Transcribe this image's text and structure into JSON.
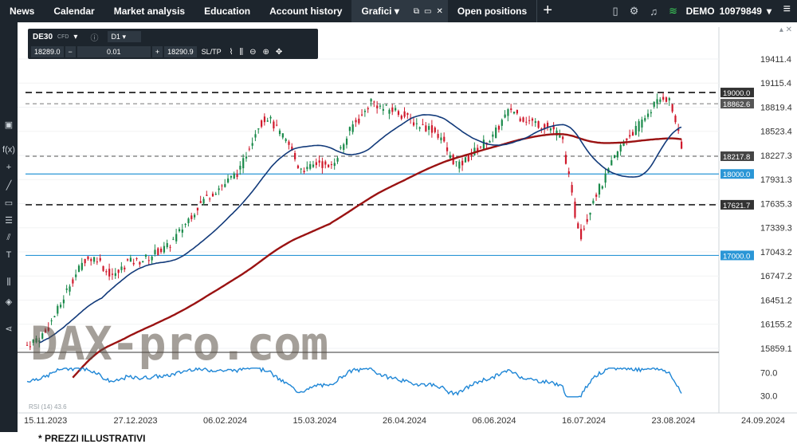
{
  "topbar": {
    "tabs": [
      "News",
      "Calendar",
      "Market analysis",
      "Education",
      "Account history",
      "Grafici",
      "Open positions"
    ],
    "account_mode": "DEMO",
    "account_number": "10979849"
  },
  "instrument": {
    "symbol": "DE30",
    "type": "CFD",
    "timeframe": "D1",
    "bid": "18289.0",
    "volume": "0.01",
    "ask": "18290.9",
    "sltp_label": "SL/TP"
  },
  "price_axis": [
    "19411.4",
    "19115.4",
    "18819.4",
    "18523.4",
    "18227.3",
    "17931.3",
    "17635.3",
    "17339.3",
    "17043.2",
    "16747.2",
    "16451.2",
    "16155.2",
    "15859.1"
  ],
  "level_labels": [
    "19000.0",
    "18862.6",
    "18217.8",
    "18000.0",
    "17621.7",
    "17000.0"
  ],
  "rsi_axis": [
    "70.0",
    "30.0"
  ],
  "rsi_label": "RSI (14) 43.6",
  "date_axis": [
    "15.11.2023",
    "27.12.2023",
    "06.02.2024",
    "15.03.2024",
    "26.04.2024",
    "06.06.2024",
    "16.07.2024",
    "23.08.2024",
    "24.09.2024"
  ],
  "watermark": "DAX-pro.com",
  "footer": "* PREZZI ILLUSTRATIVI",
  "colors": {
    "up": "#1a8a4a",
    "down": "#d0192c",
    "ma_fast": "#123a7a",
    "ma_slow": "#9a1212",
    "level_blue": "#2a96d6",
    "rsi": "#1e86d6"
  }
}
